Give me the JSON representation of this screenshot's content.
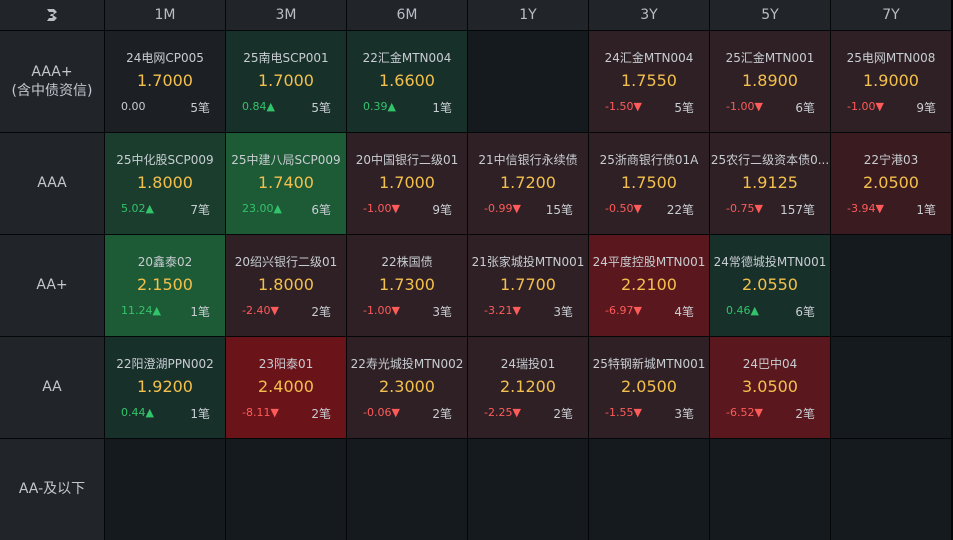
{
  "columns": [
    "1M",
    "3M",
    "6M",
    "1Y",
    "3Y",
    "5Y",
    "7Y"
  ],
  "rows": [
    {
      "label_lines": [
        "AAA+",
        "(含中债资信)"
      ],
      "cells": [
        {
          "name": "24电网CP005",
          "value": "1.7000",
          "change": "0.00",
          "dir": "flat",
          "count": "5笔",
          "tone": "n1"
        },
        {
          "name": "25南电SCP001",
          "value": "1.7000",
          "change": "0.84▲",
          "dir": "up",
          "count": "5笔",
          "tone": "g1"
        },
        {
          "name": "22汇金MTN004",
          "value": "1.6600",
          "change": "0.39▲",
          "dir": "up",
          "count": "1笔",
          "tone": "g1"
        },
        null,
        {
          "name": "24汇金MTN004",
          "value": "1.7550",
          "change": "-1.50▼",
          "dir": "down",
          "count": "5笔",
          "tone": "r1"
        },
        {
          "name": "25汇金MTN001",
          "value": "1.8900",
          "change": "-1.00▼",
          "dir": "down",
          "count": "6笔",
          "tone": "r1"
        },
        {
          "name": "25电网MTN008",
          "value": "1.9000",
          "change": "-1.00▼",
          "dir": "down",
          "count": "9笔",
          "tone": "r1"
        }
      ]
    },
    {
      "label_lines": [
        "AAA"
      ],
      "cells": [
        {
          "name": "25中化股SCP009",
          "value": "1.8000",
          "change": "5.02▲",
          "dir": "up",
          "count": "7笔",
          "tone": "g2"
        },
        {
          "name": "25中建八局SCP009",
          "value": "1.7400",
          "change": "23.00▲",
          "dir": "up",
          "count": "6笔",
          "tone": "g3"
        },
        {
          "name": "20中国银行二级01",
          "value": "1.7000",
          "change": "-1.00▼",
          "dir": "down",
          "count": "9笔",
          "tone": "r1"
        },
        {
          "name": "21中信银行永续债",
          "value": "1.7200",
          "change": "-0.99▼",
          "dir": "down",
          "count": "15笔",
          "tone": "r1"
        },
        {
          "name": "25浙商银行债01A",
          "value": "1.7500",
          "change": "-0.50▼",
          "dir": "down",
          "count": "22笔",
          "tone": "r1"
        },
        {
          "name": "25农行二级资本债0...",
          "value": "1.9125",
          "change": "-0.75▼",
          "dir": "down",
          "count": "157笔",
          "tone": "r1"
        },
        {
          "name": "22宁港03",
          "value": "2.0500",
          "change": "-3.94▼",
          "dir": "down",
          "count": "1笔",
          "tone": "r2"
        }
      ]
    },
    {
      "label_lines": [
        "AA+"
      ],
      "cells": [
        {
          "name": "20鑫泰02",
          "value": "2.1500",
          "change": "11.24▲",
          "dir": "up",
          "count": "1笔",
          "tone": "g3"
        },
        {
          "name": "20绍兴银行二级01",
          "value": "1.8000",
          "change": "-2.40▼",
          "dir": "down",
          "count": "2笔",
          "tone": "r1"
        },
        {
          "name": "22株国债",
          "value": "1.7300",
          "change": "-1.00▼",
          "dir": "down",
          "count": "3笔",
          "tone": "r1"
        },
        {
          "name": "21张家城投MTN001",
          "value": "1.7700",
          "change": "-3.21▼",
          "dir": "down",
          "count": "3笔",
          "tone": "r1"
        },
        {
          "name": "24平度控股MTN001",
          "value": "2.2100",
          "change": "-6.97▼",
          "dir": "down",
          "count": "4笔",
          "tone": "r3"
        },
        {
          "name": "24常德城投MTN001",
          "value": "2.0550",
          "change": "0.46▲",
          "dir": "up",
          "count": "6笔",
          "tone": "g1"
        },
        null
      ]
    },
    {
      "label_lines": [
        "AA"
      ],
      "cells": [
        {
          "name": "22阳澄湖PPN002",
          "value": "1.9200",
          "change": "0.44▲",
          "dir": "up",
          "count": "1笔",
          "tone": "g1"
        },
        {
          "name": "23阳泰01",
          "value": "2.4000",
          "change": "-8.11▼",
          "dir": "down",
          "count": "2笔",
          "tone": "r4"
        },
        {
          "name": "22寿光城投MTN002",
          "value": "2.3000",
          "change": "-0.06▼",
          "dir": "down",
          "count": "2笔",
          "tone": "r1"
        },
        {
          "name": "24瑞投01",
          "value": "2.1200",
          "change": "-2.25▼",
          "dir": "down",
          "count": "2笔",
          "tone": "r1"
        },
        {
          "name": "25特钢新城MTN001",
          "value": "2.0500",
          "change": "-1.55▼",
          "dir": "down",
          "count": "3笔",
          "tone": "r1"
        },
        {
          "name": "24巴中04",
          "value": "3.0500",
          "change": "-6.52▼",
          "dir": "down",
          "count": "2笔",
          "tone": "r3"
        },
        null
      ]
    },
    {
      "label_lines": [
        "AA-及以下"
      ],
      "cells": [
        null,
        null,
        null,
        null,
        null,
        null,
        null
      ]
    }
  ]
}
